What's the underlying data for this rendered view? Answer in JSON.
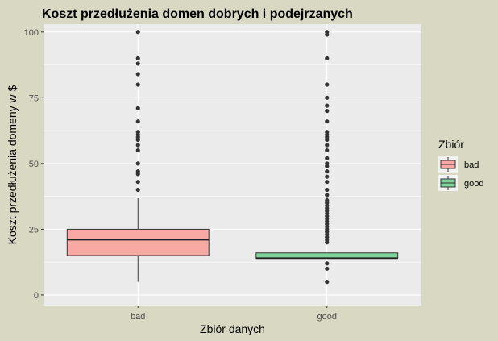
{
  "chart_data": {
    "type": "boxplot",
    "title": "Koszt przedłużenia domen dobrych i podejrzanych",
    "xlabel": "Zbiór danych",
    "ylabel": "Koszt przedłużenia domeny w $",
    "ylim": [
      -4,
      103
    ],
    "yticks": [
      0,
      25,
      50,
      75,
      100
    ],
    "grid": true,
    "legend": {
      "title": "Zbiór",
      "position": "right"
    },
    "categories": [
      "bad",
      "good"
    ],
    "series": [
      {
        "name": "bad",
        "color": "#f8a9a3",
        "whisker_low": 5,
        "q1": 15,
        "median": 21,
        "q3": 25,
        "whisker_high": 37,
        "outliers": [
          40,
          43,
          46,
          47,
          50,
          55,
          57,
          59,
          60,
          61,
          62,
          66,
          71,
          80,
          84,
          88,
          90,
          100
        ]
      },
      {
        "name": "good",
        "color": "#7fd39b",
        "whisker_low": 14,
        "q1": 14,
        "median": 14,
        "q3": 16,
        "whisker_high": 16,
        "outliers": [
          5,
          10,
          12,
          20,
          21,
          22,
          23,
          24,
          25,
          26,
          27,
          28,
          29,
          30,
          31,
          32,
          33,
          34,
          35,
          36,
          38,
          40,
          43,
          45,
          47,
          49,
          50,
          52,
          55,
          57,
          59,
          60,
          61,
          62,
          66,
          70,
          72,
          75,
          80,
          90,
          99,
          100
        ]
      }
    ]
  }
}
